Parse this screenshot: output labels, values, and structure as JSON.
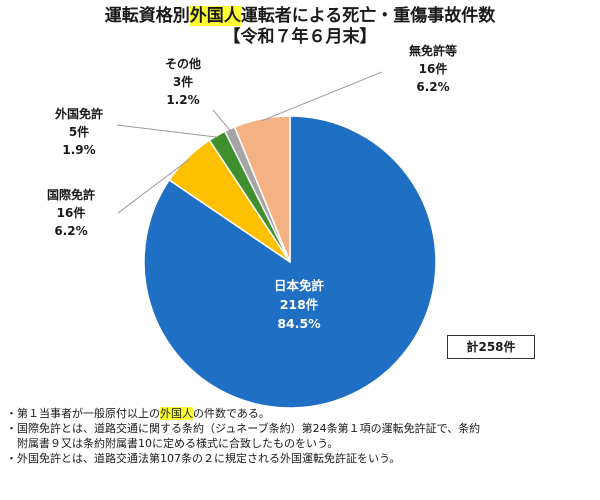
{
  "title": {
    "line1_pre": "運転資格別",
    "line1_highlight": "外国人",
    "line1_post": "運転者による死亡・重傷事故件数",
    "line2": "【令和７年６月末】"
  },
  "colors": {
    "highlight": "#ffff33"
  },
  "chart_data": {
    "type": "pie",
    "categories": [
      "日本免許",
      "国際免許",
      "外国免許",
      "その他",
      "無免許等"
    ],
    "values": [
      218,
      16,
      5,
      3,
      16
    ],
    "percentages": [
      "84.5%",
      "6.2%",
      "1.9%",
      "1.2%",
      "6.2%"
    ],
    "slices": [
      {
        "name": "日本免許",
        "count": "218件",
        "pct": "84.5%",
        "value": 218,
        "color": "#1f6fc5",
        "label_pos": "inside"
      },
      {
        "name": "国際免許",
        "count": "16件",
        "pct": "6.2%",
        "value": 16,
        "color": "#ffc000",
        "label_pos": "left"
      },
      {
        "name": "外国免許",
        "count": "5件",
        "pct": "1.9%",
        "value": 5,
        "color": "#3f8f2f",
        "label_pos": "left"
      },
      {
        "name": "その他",
        "count": "3件",
        "pct": "1.2%",
        "value": 3,
        "color": "#a5a5a5",
        "label_pos": "top"
      },
      {
        "name": "無免許等",
        "count": "16件",
        "pct": "6.2%",
        "value": 16,
        "color": "#f4b183",
        "label_pos": "top-right"
      }
    ],
    "total_label": "計258件"
  },
  "notes": {
    "n1_pre": "・第１当事者が一般原付以上の",
    "n1_highlight": "外国人",
    "n1_post": "の件数である。",
    "n2_line1": "・国際免許とは、道路交通に関する条約（ジュネーブ条約）第24条第１項の運転免許証で、条約",
    "n2_line2": "附属書９又は条約附属書10に定める様式に合致したものをいう。",
    "n3": "・外国免許とは、道路交通法第107条の２に規定される外国運転免許証をいう。"
  }
}
